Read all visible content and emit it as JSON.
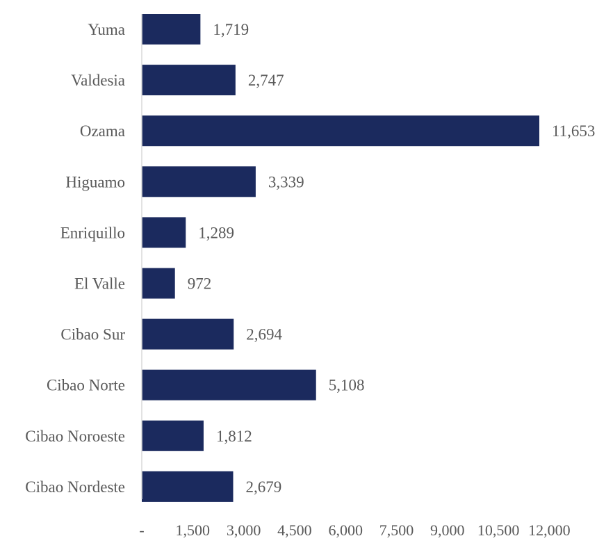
{
  "chart_data": {
    "type": "bar",
    "orientation": "horizontal",
    "categories": [
      "Yuma",
      "Valdesia",
      "Ozama",
      "Higuamo",
      "Enriquillo",
      "El Valle",
      "Cibao Sur",
      "Cibao Norte",
      "Cibao Noroeste",
      "Cibao Nordeste"
    ],
    "values": [
      1719,
      2747,
      11653,
      3339,
      1289,
      972,
      2694,
      5108,
      1812,
      2679
    ],
    "value_labels": [
      "1,719",
      "2,747",
      "11,653",
      "3,339",
      "1,289",
      "972",
      "2,694",
      "5,108",
      "1,812",
      "2,679"
    ],
    "x_ticks": [
      0,
      1500,
      3000,
      4500,
      6000,
      7500,
      9000,
      10500,
      12000
    ],
    "x_tick_labels": [
      "-",
      "1,500",
      "3,000",
      "4,500",
      "6,000",
      "7,500",
      "9,000",
      "10,500",
      "12,000"
    ],
    "xlim": [
      0,
      12000
    ],
    "grid": false,
    "legend": "none",
    "title": "",
    "xlabel": "",
    "ylabel": "",
    "colors": {
      "bar": "#1b2a5e",
      "axis": "#d9d9d9",
      "text": "#595959"
    }
  }
}
